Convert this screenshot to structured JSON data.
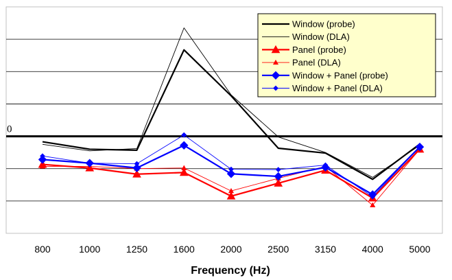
{
  "chart_data": {
    "type": "line",
    "title": "",
    "xlabel": "Frequency (Hz)",
    "ylabel": "",
    "categories": [
      "800",
      "1000",
      "1250",
      "1600",
      "2000",
      "2500",
      "3150",
      "4000",
      "5000"
    ],
    "ylim": [
      -3,
      4
    ],
    "reference_line": {
      "value": 0,
      "label": "0"
    },
    "grid": "horizontal",
    "legend_position": "top-right",
    "legend_background": "#ffffcc",
    "series": [
      {
        "name": "Window (probe)",
        "color": "#000000",
        "line_width": 2.2,
        "marker": "none",
        "values": [
          -0.17,
          -0.4,
          -0.43,
          2.67,
          1.25,
          -0.37,
          -0.52,
          -1.33,
          -0.24
        ]
      },
      {
        "name": "Window (DLA)",
        "color": "#000000",
        "line_width": 0.9,
        "marker": "none",
        "values": [
          -0.25,
          -0.45,
          -0.38,
          3.35,
          1.28,
          -0.02,
          -0.5,
          -1.27,
          -0.28
        ]
      },
      {
        "name": "Panel (probe)",
        "color": "#ff0000",
        "line_width": 2.2,
        "marker": "triangle",
        "values": [
          -0.87,
          -0.98,
          -1.17,
          -1.12,
          -1.85,
          -1.45,
          -1.05,
          -1.91,
          -0.4
        ]
      },
      {
        "name": "Panel (DLA)",
        "color": "#ff0000",
        "line_width": 0.9,
        "marker": "triangle-small",
        "values": [
          -0.93,
          -0.93,
          -1.0,
          -0.98,
          -1.69,
          -1.3,
          -0.93,
          -2.13,
          -0.4
        ]
      },
      {
        "name": "Window + Panel (probe)",
        "color": "#0000ff",
        "line_width": 2.2,
        "marker": "diamond",
        "values": [
          -0.72,
          -0.83,
          -0.98,
          -0.28,
          -1.16,
          -1.24,
          -0.96,
          -1.8,
          -0.33
        ]
      },
      {
        "name": "Window + Panel (DLA)",
        "color": "#0000ff",
        "line_width": 0.9,
        "marker": "diamond-small",
        "values": [
          -0.61,
          -0.83,
          -0.85,
          0.04,
          -1.02,
          -1.03,
          -0.89,
          -1.87,
          -0.33
        ]
      }
    ]
  }
}
